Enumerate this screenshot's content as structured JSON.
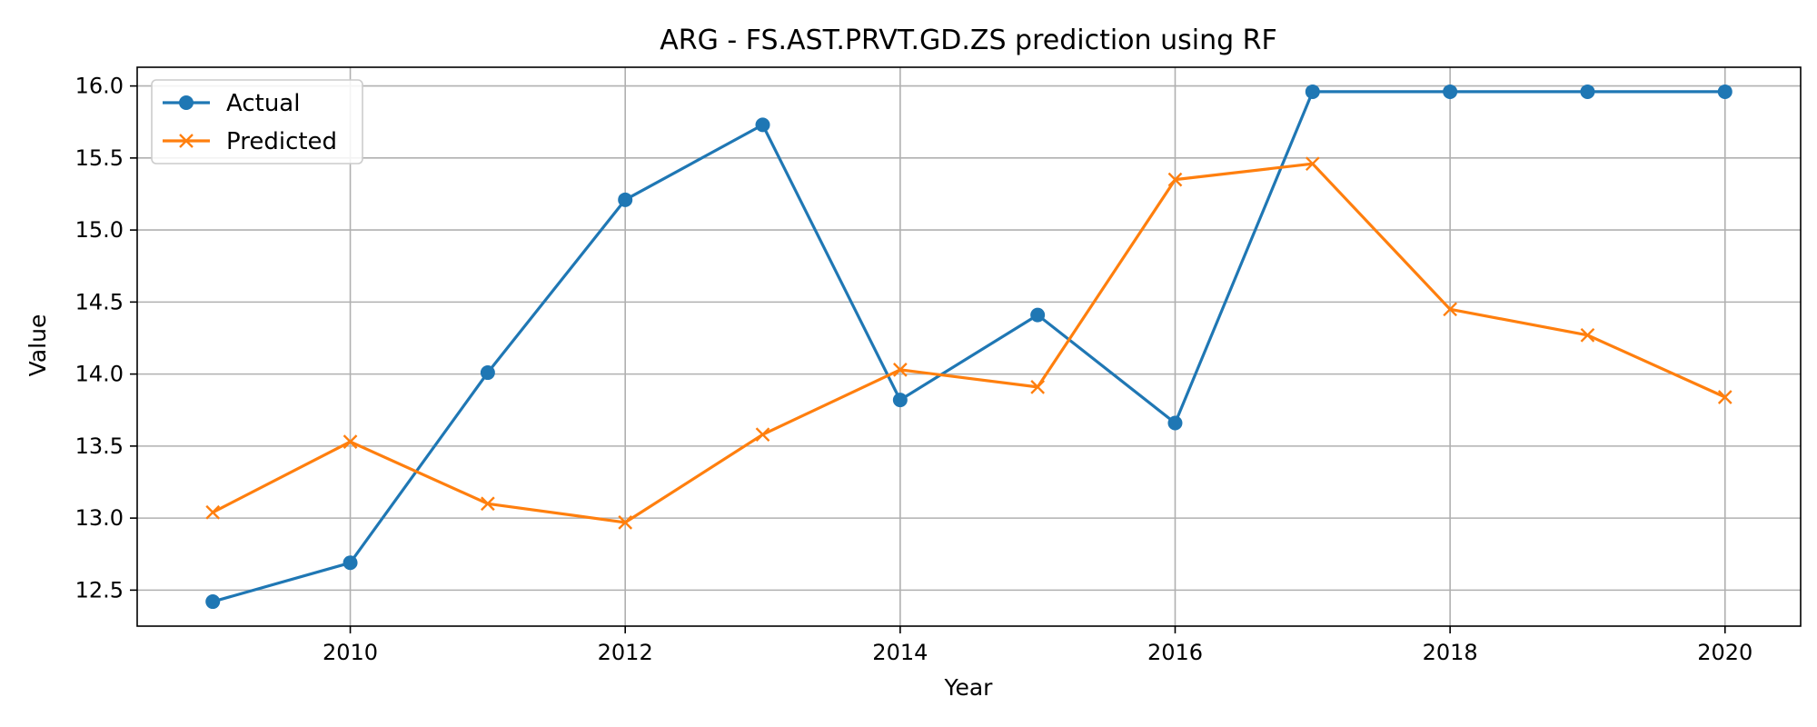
{
  "chart_data": {
    "type": "line",
    "title": "ARG - FS.AST.PRVT.GD.ZS prediction using RF",
    "xlabel": "Year",
    "ylabel": "Value",
    "x": [
      2009,
      2010,
      2011,
      2012,
      2013,
      2014,
      2015,
      2016,
      2017,
      2018,
      2019,
      2020
    ],
    "xlim": [
      2008.45,
      2020.55
    ],
    "ylim": [
      12.25,
      16.13
    ],
    "xticks": [
      2010,
      2012,
      2014,
      2016,
      2018,
      2020
    ],
    "xtick_labels": [
      "2010",
      "2012",
      "2014",
      "2016",
      "2018",
      "2020"
    ],
    "yticks": [
      12.5,
      13.0,
      13.5,
      14.0,
      14.5,
      15.0,
      15.5,
      16.0
    ],
    "ytick_labels": [
      "12.5",
      "13.0",
      "13.5",
      "14.0",
      "14.5",
      "15.0",
      "15.5",
      "16.0"
    ],
    "grid": true,
    "legend_position": "upper-left",
    "series": [
      {
        "name": "Actual",
        "color": "#1f77b4",
        "marker": "circle",
        "values": [
          12.42,
          12.69,
          14.01,
          15.21,
          15.73,
          13.82,
          14.41,
          13.66,
          15.96,
          15.96,
          15.96,
          15.96
        ]
      },
      {
        "name": "Predicted",
        "color": "#ff7f0e",
        "marker": "x",
        "values": [
          13.04,
          13.53,
          13.1,
          12.97,
          13.58,
          14.03,
          13.91,
          15.35,
          15.46,
          14.45,
          14.27,
          13.84
        ]
      }
    ]
  }
}
